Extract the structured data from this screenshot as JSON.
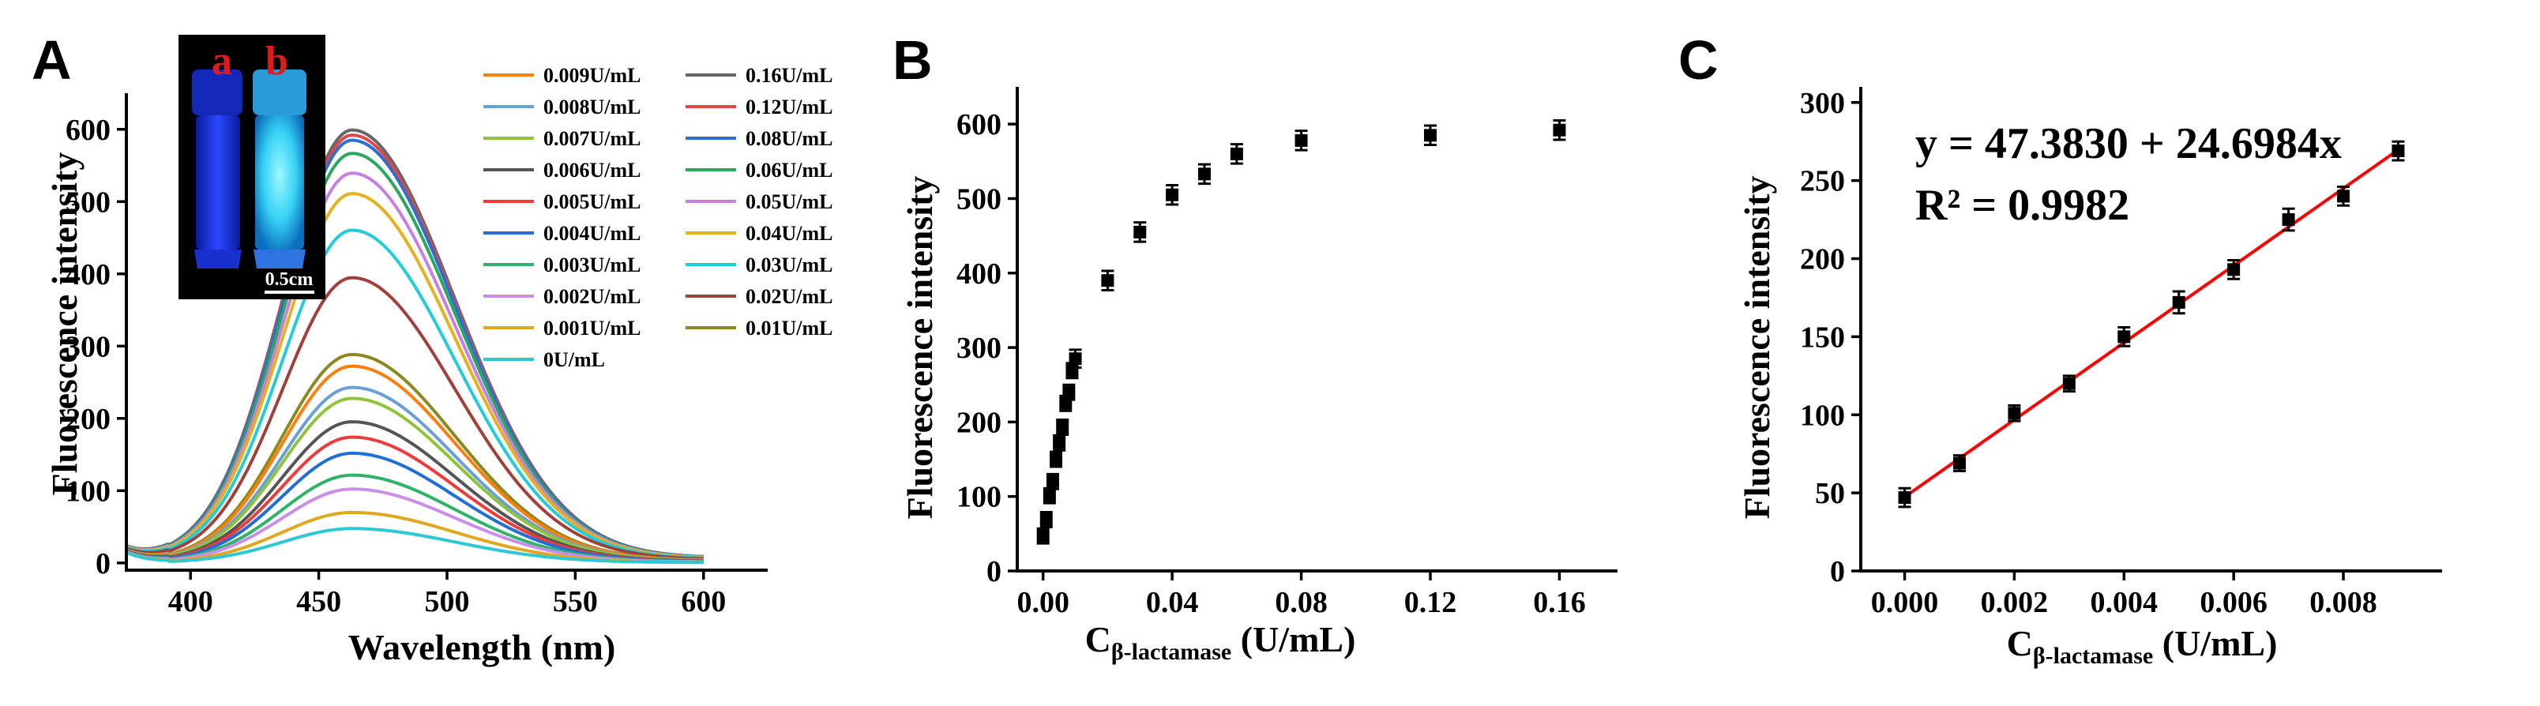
{
  "panels": {
    "a": "A",
    "b": "B",
    "c": "C"
  },
  "inset": {
    "label_a": "a",
    "label_b": "b",
    "scale_bar": "0.5cm"
  },
  "fit": {
    "equation": "y = 47.3830 + 24.6984x",
    "r_squared": "R² = 0.9982"
  },
  "chart_data": [
    {
      "type": "line",
      "panel": "A",
      "xlabel": "Wavelength (nm)",
      "ylabel": "Fluorescence intensity",
      "xlim": [
        375,
        625
      ],
      "ylim": [
        -10,
        650
      ],
      "xticks": [
        400,
        450,
        500,
        550,
        600
      ],
      "yticks": [
        0,
        100,
        200,
        300,
        400,
        500,
        600
      ],
      "peak_wavelength": 463,
      "legend_placement": "top-right",
      "series": [
        {
          "name": "0.009U/mL",
          "color": "#ff7f0e",
          "peak": 269
        },
        {
          "name": "0.008U/mL",
          "color": "#6a9fd8",
          "peak": 240
        },
        {
          "name": "0.007U/mL",
          "color": "#8fc43a",
          "peak": 225
        },
        {
          "name": "0.006U/mL",
          "color": "#555555",
          "peak": 193
        },
        {
          "name": "0.005U/mL",
          "color": "#ee3b3b",
          "peak": 172
        },
        {
          "name": "0.004U/mL",
          "color": "#1f6fd6",
          "peak": 150
        },
        {
          "name": "0.003U/mL",
          "color": "#2fb36b",
          "peak": 120
        },
        {
          "name": "0.002U/mL",
          "color": "#c98ee8",
          "peak": 101
        },
        {
          "name": "0.001U/mL",
          "color": "#e0a820",
          "peak": 69
        },
        {
          "name": "0U/mL",
          "color": "#2ec8d4",
          "peak": 47
        },
        {
          "name": "0.16U/mL",
          "color": "#666666",
          "peak": 592
        },
        {
          "name": "0.12U/mL",
          "color": "#e04848",
          "peak": 585
        },
        {
          "name": "0.08U/mL",
          "color": "#2b6fd0",
          "peak": 578
        },
        {
          "name": "0.06U/mL",
          "color": "#2aa860",
          "peak": 560
        },
        {
          "name": "0.05U/mL",
          "color": "#c880e0",
          "peak": 533
        },
        {
          "name": "0.04U/mL",
          "color": "#e3b21c",
          "peak": 505
        },
        {
          "name": "0.03U/mL",
          "color": "#22ccd8",
          "peak": 455
        },
        {
          "name": "0.02U/mL",
          "color": "#a0403a",
          "peak": 390
        },
        {
          "name": "0.01U/mL",
          "color": "#8a8a20",
          "peak": 285
        }
      ]
    },
    {
      "type": "scatter",
      "panel": "B",
      "xlabel_main": "C",
      "xlabel_sub": "β-lactamase",
      "xlabel_unit": " (U/mL)",
      "ylabel": "Fluorescence intensity",
      "xlim": [
        -0.008,
        0.178
      ],
      "ylim": [
        0,
        650
      ],
      "xticks": [
        "0.00",
        "0.04",
        "0.08",
        "0.12",
        "0.16"
      ],
      "yticks": [
        0,
        100,
        200,
        300,
        400,
        500,
        600
      ],
      "points": [
        {
          "x": 0.0,
          "y": 47,
          "err": 10
        },
        {
          "x": 0.001,
          "y": 69,
          "err": 10
        },
        {
          "x": 0.002,
          "y": 101,
          "err": 10
        },
        {
          "x": 0.003,
          "y": 120,
          "err": 10
        },
        {
          "x": 0.004,
          "y": 150,
          "err": 10
        },
        {
          "x": 0.005,
          "y": 172,
          "err": 10
        },
        {
          "x": 0.006,
          "y": 193,
          "err": 10
        },
        {
          "x": 0.007,
          "y": 225,
          "err": 10
        },
        {
          "x": 0.008,
          "y": 240,
          "err": 10
        },
        {
          "x": 0.009,
          "y": 269,
          "err": 10
        },
        {
          "x": 0.01,
          "y": 285,
          "err": 12
        },
        {
          "x": 0.02,
          "y": 390,
          "err": 13
        },
        {
          "x": 0.03,
          "y": 455,
          "err": 13
        },
        {
          "x": 0.04,
          "y": 505,
          "err": 13
        },
        {
          "x": 0.05,
          "y": 533,
          "err": 13
        },
        {
          "x": 0.06,
          "y": 560,
          "err": 13
        },
        {
          "x": 0.08,
          "y": 578,
          "err": 13
        },
        {
          "x": 0.12,
          "y": 585,
          "err": 13
        },
        {
          "x": 0.16,
          "y": 592,
          "err": 13
        }
      ]
    },
    {
      "type": "scatter",
      "panel": "C",
      "xlabel_main": "C",
      "xlabel_sub": "β-lactamase",
      "xlabel_unit": " (U/mL)",
      "ylabel": "Fluorescence intensity",
      "xlim": [
        -0.0008,
        0.0098
      ],
      "ylim": [
        0,
        310
      ],
      "xticks": [
        "0.000",
        "0.002",
        "0.004",
        "0.006",
        "0.008"
      ],
      "yticks": [
        0,
        50,
        100,
        150,
        200,
        250,
        300
      ],
      "fit_color": "#ff0000",
      "fit_intercept": 47.383,
      "fit_slope_per_mU": 24.6984,
      "points": [
        {
          "x": 0.0,
          "y": 47,
          "err": 6
        },
        {
          "x": 0.001,
          "y": 69,
          "err": 5
        },
        {
          "x": 0.002,
          "y": 101,
          "err": 5
        },
        {
          "x": 0.003,
          "y": 120,
          "err": 5
        },
        {
          "x": 0.004,
          "y": 150,
          "err": 6
        },
        {
          "x": 0.005,
          "y": 172,
          "err": 7
        },
        {
          "x": 0.006,
          "y": 193,
          "err": 6
        },
        {
          "x": 0.007,
          "y": 225,
          "err": 7
        },
        {
          "x": 0.008,
          "y": 240,
          "err": 6
        },
        {
          "x": 0.009,
          "y": 269,
          "err": 6
        }
      ]
    }
  ]
}
